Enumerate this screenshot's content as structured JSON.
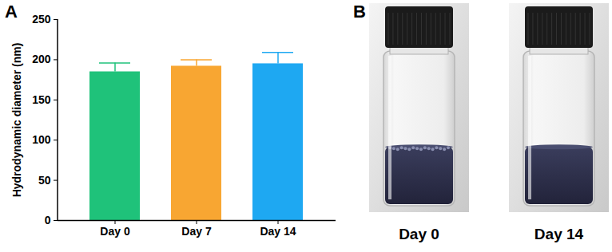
{
  "chart_data": {
    "type": "bar",
    "panel_label": "A",
    "categories": [
      "Day 0",
      "Day 7",
      "Day 14"
    ],
    "values": [
      185,
      192,
      195
    ],
    "error": [
      11,
      8,
      14
    ],
    "colors": [
      "#1fc27a",
      "#f8a632",
      "#1ea8f2"
    ],
    "y_label": "Hydrodynamic diameter (nm)",
    "ylim": [
      0,
      250
    ],
    "yticks": [
      0,
      50,
      100,
      150,
      200,
      250
    ],
    "grid": false
  },
  "photos": {
    "panel_label": "B",
    "images": [
      {
        "label": "Day 0"
      },
      {
        "label": "Day 14"
      }
    ]
  }
}
